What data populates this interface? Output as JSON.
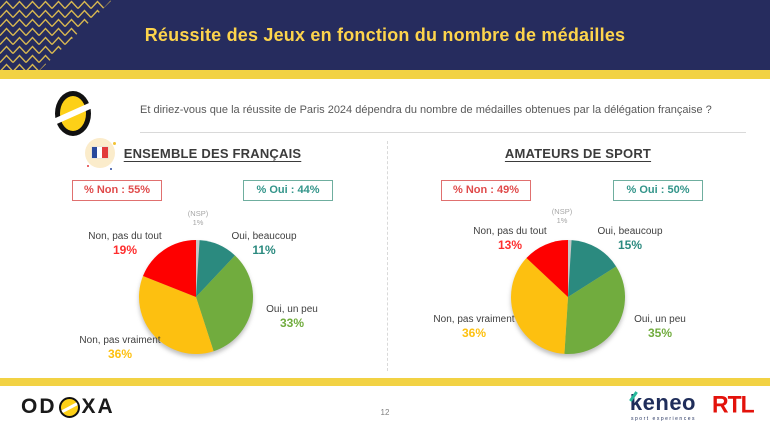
{
  "header": {
    "title": "Réussite des Jeux en fonction du nombre de médailles"
  },
  "question": "Et diriez-vous que la réussite de Paris 2024 dépendra du nombre de médailles obtenues par la délégation française ?",
  "charts": [
    {
      "title": "ENSEMBLE DES FRANÇAIS",
      "badge_non": "% Non : 55%",
      "badge_oui": "% Oui : 44%",
      "slices": [
        {
          "label": "(NSP)",
          "pct": "1%"
        },
        {
          "label": "Oui, beaucoup",
          "pct": "11%"
        },
        {
          "label": "Oui, un peu",
          "pct": "33%"
        },
        {
          "label": "Non, pas vraiment",
          "pct": "36%"
        },
        {
          "label": "Non, pas du tout",
          "pct": "19%"
        }
      ]
    },
    {
      "title": "AMATEURS DE SPORT",
      "badge_non": "% Non : 49%",
      "badge_oui": "% Oui : 50%",
      "slices": [
        {
          "label": "(NSP)",
          "pct": "1%"
        },
        {
          "label": "Oui, beaucoup",
          "pct": "15%"
        },
        {
          "label": "Oui, un peu",
          "pct": "35%"
        },
        {
          "label": "Non, pas vraiment",
          "pct": "36%"
        },
        {
          "label": "Non, pas du tout",
          "pct": "13%"
        }
      ]
    }
  ],
  "chart_data": [
    {
      "type": "pie",
      "title": "ENSEMBLE DES FRANÇAIS",
      "labels": [
        "(NSP)",
        "Oui, beaucoup",
        "Oui, un peu",
        "Non, pas vraiment",
        "Non, pas du tout"
      ],
      "values": [
        1,
        11,
        33,
        36,
        19
      ],
      "colors": [
        "#c6c6c6",
        "#2b8a7f",
        "#71ac3e",
        "#fdc010",
        "#fe0000"
      ],
      "start_angle_deg": -90,
      "direction": "clockwise",
      "totals": {
        "non": 55,
        "oui": 44
      }
    },
    {
      "type": "pie",
      "title": "AMATEURS DE SPORT",
      "labels": [
        "(NSP)",
        "Oui, beaucoup",
        "Oui, un peu",
        "Non, pas vraiment",
        "Non, pas du tout"
      ],
      "values": [
        1,
        15,
        35,
        36,
        13
      ],
      "colors": [
        "#c6c6c6",
        "#2b8a7f",
        "#71ac3e",
        "#fdc010",
        "#fe0000"
      ],
      "start_angle_deg": -90,
      "direction": "clockwise",
      "totals": {
        "non": 49,
        "oui": 50
      }
    }
  ],
  "footer": {
    "odoxa_left": "OD",
    "odoxa_right": "XA",
    "page_number": "12",
    "keneo": "keneo",
    "keneo_tagline": "sport experiences",
    "rtl": "RTL"
  },
  "colors": {
    "header_navy": "#262c5e",
    "title_yellow": "#fdd44c",
    "bar_yellow": "#f2d244",
    "non_red": "#e04b4b",
    "oui_teal": "#33958a",
    "slice_teal": "#2b8a7f",
    "slice_green": "#71ac3e",
    "slice_yellow": "#fdc010",
    "slice_red": "#fe0000",
    "slice_gray": "#c6c6c6"
  }
}
